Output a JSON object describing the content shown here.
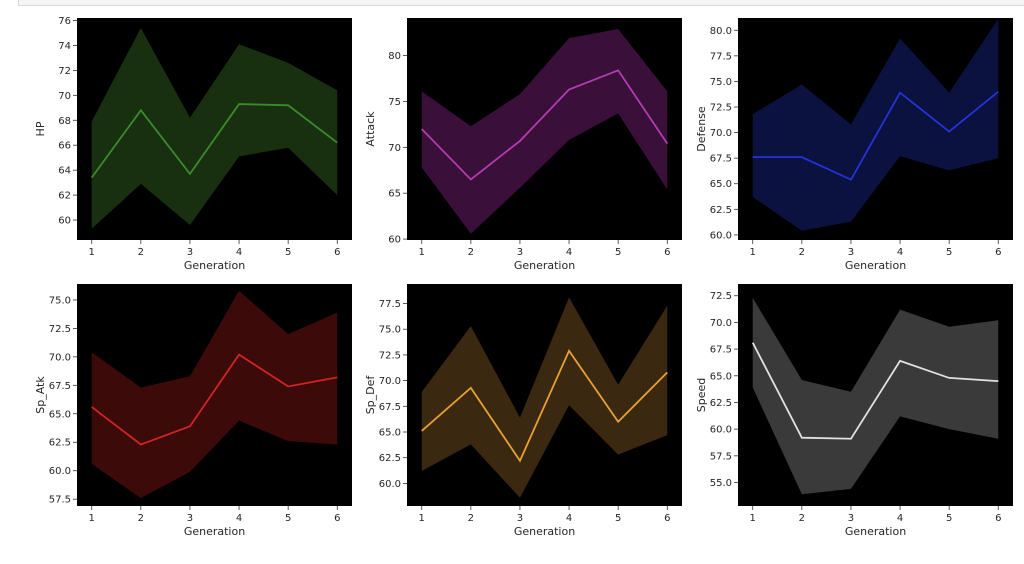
{
  "chart_data": [
    {
      "type": "line",
      "xlabel": "Generation",
      "ylabel": "HP",
      "x": [
        1,
        2,
        3,
        4,
        5,
        6
      ],
      "xlim": [
        0.7,
        6.3
      ],
      "ylim": [
        58.4,
        76.2
      ],
      "yticks": [
        60,
        62,
        64,
        66,
        68,
        70,
        72,
        74,
        76
      ],
      "series": [
        {
          "values": [
            63.4,
            68.8,
            63.7,
            69.3,
            69.2,
            66.2
          ],
          "ci_low": [
            59.3,
            62.9,
            59.6,
            65.1,
            65.8,
            62.0
          ],
          "ci_high": [
            67.9,
            75.4,
            68.2,
            74.1,
            72.6,
            70.4
          ]
        }
      ],
      "colors": {
        "line": "#3b8a2e",
        "band": "#183010"
      }
    },
    {
      "type": "line",
      "xlabel": "Generation",
      "ylabel": "Attack",
      "x": [
        1,
        2,
        3,
        4,
        5,
        6
      ],
      "xlim": [
        0.7,
        6.3
      ],
      "ylim": [
        59.9,
        84.1
      ],
      "yticks": [
        60,
        65,
        70,
        75,
        80
      ],
      "series": [
        {
          "values": [
            72.0,
            66.5,
            70.7,
            76.3,
            78.4,
            70.4
          ],
          "ci_low": [
            67.8,
            60.6,
            65.6,
            70.8,
            73.7,
            65.4
          ],
          "ci_high": [
            76.1,
            72.3,
            75.8,
            81.9,
            82.9,
            76.1
          ]
        }
      ],
      "colors": {
        "line": "#b23cb2",
        "band": "#3a0f3a"
      }
    },
    {
      "type": "line",
      "xlabel": "Generation",
      "ylabel": "Defense",
      "x": [
        1,
        2,
        3,
        4,
        5,
        6
      ],
      "xlim": [
        0.7,
        6.3
      ],
      "ylim": [
        59.5,
        81.2
      ],
      "yticks": [
        60.0,
        62.5,
        65.0,
        67.5,
        70.0,
        72.5,
        75.0,
        77.5,
        80.0
      ],
      "series": [
        {
          "values": [
            67.6,
            67.6,
            65.4,
            73.9,
            70.1,
            74.0
          ],
          "ci_low": [
            63.7,
            60.4,
            61.3,
            67.7,
            66.3,
            67.5
          ],
          "ci_high": [
            71.8,
            74.7,
            70.8,
            79.2,
            73.9,
            81.1
          ]
        }
      ],
      "colors": {
        "line": "#2432d8",
        "band": "#0b1240"
      }
    },
    {
      "type": "line",
      "xlabel": "Generation",
      "ylabel": "Sp_Atk",
      "x": [
        1,
        2,
        3,
        4,
        5,
        6
      ],
      "xlim": [
        0.7,
        6.3
      ],
      "ylim": [
        56.9,
        76.4
      ],
      "yticks": [
        57.5,
        60.0,
        62.5,
        65.0,
        67.5,
        70.0,
        72.5,
        75.0
      ],
      "series": [
        {
          "values": [
            65.6,
            62.3,
            63.9,
            70.2,
            67.4,
            68.2
          ],
          "ci_low": [
            60.6,
            57.6,
            59.9,
            64.4,
            62.6,
            62.3
          ],
          "ci_high": [
            70.4,
            67.3,
            68.3,
            75.8,
            72.0,
            73.9
          ]
        }
      ],
      "colors": {
        "line": "#d02424",
        "band": "#3d0a0a"
      }
    },
    {
      "type": "line",
      "xlabel": "Generation",
      "ylabel": "Sp_Def",
      "x": [
        1,
        2,
        3,
        4,
        5,
        6
      ],
      "xlim": [
        0.7,
        6.3
      ],
      "ylim": [
        57.8,
        79.4
      ],
      "yticks": [
        60.0,
        62.5,
        65.0,
        67.5,
        70.0,
        72.5,
        75.0,
        77.5
      ],
      "series": [
        {
          "values": [
            65.1,
            69.3,
            62.2,
            72.9,
            66.0,
            70.8
          ],
          "ci_low": [
            61.2,
            63.8,
            58.6,
            67.6,
            62.8,
            64.7
          ],
          "ci_high": [
            68.9,
            75.3,
            66.4,
            78.1,
            69.6,
            77.3
          ]
        }
      ],
      "colors": {
        "line": "#e8a030",
        "band": "#3a2810"
      }
    },
    {
      "type": "line",
      "xlabel": "Generation",
      "ylabel": "Speed",
      "x": [
        1,
        2,
        3,
        4,
        5,
        6
      ],
      "xlim": [
        0.7,
        6.3
      ],
      "ylim": [
        52.8,
        73.6
      ],
      "yticks": [
        55.0,
        57.5,
        60.0,
        62.5,
        65.0,
        67.5,
        70.0,
        72.5
      ],
      "series": [
        {
          "values": [
            68.1,
            59.2,
            59.1,
            66.4,
            64.8,
            64.5
          ],
          "ci_low": [
            63.9,
            53.9,
            54.4,
            61.2,
            60.0,
            59.1
          ],
          "ci_high": [
            72.3,
            64.6,
            63.5,
            71.2,
            69.6,
            70.2
          ]
        }
      ],
      "colors": {
        "line": "#e0e0e0",
        "band": "#3a3a3a"
      }
    }
  ]
}
